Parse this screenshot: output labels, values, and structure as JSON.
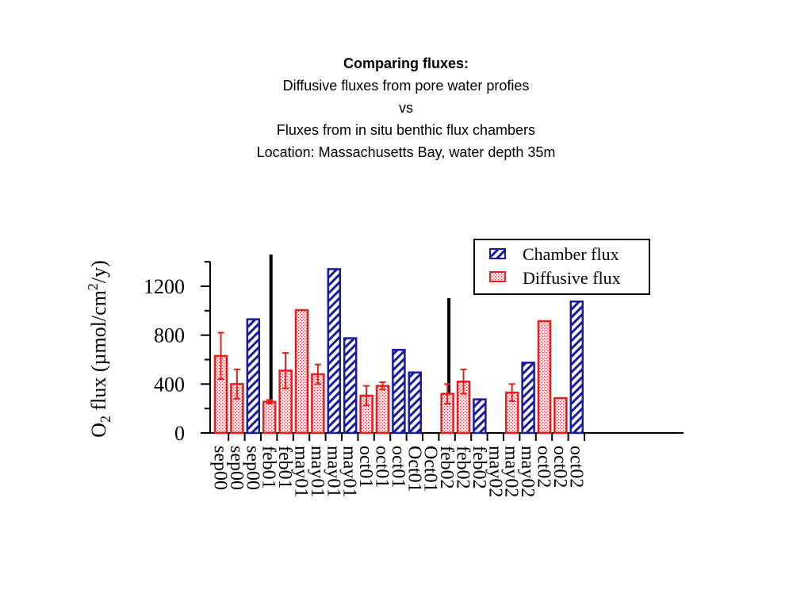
{
  "chart_data": {
    "type": "bar",
    "title": "Comparing fluxes:",
    "subtitle_lines": [
      "Diffusive fluxes from pore water profies",
      "vs",
      "Fluxes from in situ benthic flux chambers",
      "Location: Massachusetts Bay, water depth 35m"
    ],
    "ylabel": "O2 flux (µmol/cm2/y)",
    "ylabel_parts": {
      "pre": "O",
      "sub": "2",
      "mid": " flux (µmol/cm",
      "sup": "2",
      "post": "/y)"
    },
    "ylim": [
      0,
      1420
    ],
    "yticks": [
      0,
      400,
      800,
      1200
    ],
    "legend": {
      "placement": "top-right",
      "entries": [
        {
          "label": "Chamber flux",
          "series": "chamber"
        },
        {
          "label": "Diffusive flux",
          "series": "diffusive"
        }
      ]
    },
    "colors": {
      "chamber": "#1a1a9c",
      "diffusive": "#e0211f"
    },
    "categories": [
      "sep00",
      "sep00",
      "sep00",
      "feb01",
      "feb01",
      "may01",
      "may01",
      "may01",
      "may01",
      "oct01",
      "oct01",
      "oct01",
      "Oct01",
      "Oct01",
      "feb02",
      "feb02",
      "feb02",
      "may02",
      "may02",
      "may02",
      "oct02",
      "oct02",
      "oct02"
    ],
    "bars": [
      {
        "label": "sep00",
        "series": "diffusive",
        "value": 630,
        "error": 190
      },
      {
        "label": "sep00",
        "series": "diffusive",
        "value": 400,
        "error": 120
      },
      {
        "label": "sep00",
        "series": "chamber",
        "value": 930,
        "error": null
      },
      {
        "label": "feb01",
        "series": "diffusive",
        "value": 255,
        "error": 15
      },
      {
        "label": "feb01",
        "series": "diffusive",
        "value": 510,
        "error": 145
      },
      {
        "label": "may01",
        "series": "diffusive",
        "value": 1005,
        "error": null
      },
      {
        "label": "may01",
        "series": "diffusive",
        "value": 480,
        "error": 80
      },
      {
        "label": "may01",
        "series": "chamber",
        "value": 1340,
        "error": null
      },
      {
        "label": "may01",
        "series": "chamber",
        "value": 775,
        "error": null
      },
      {
        "label": "oct01",
        "series": "diffusive",
        "value": 305,
        "error": 80
      },
      {
        "label": "oct01",
        "series": "diffusive",
        "value": 385,
        "error": 30
      },
      {
        "label": "oct01",
        "series": "chamber",
        "value": 680,
        "error": null
      },
      {
        "label": "Oct01",
        "series": "chamber",
        "value": 495,
        "error": null
      },
      {
        "label": "Oct01",
        "series": "none",
        "value": null,
        "error": null
      },
      {
        "label": "feb02",
        "series": "diffusive",
        "value": 320,
        "error": 80
      },
      {
        "label": "feb02",
        "series": "diffusive",
        "value": 420,
        "error": 100
      },
      {
        "label": "feb02",
        "series": "chamber",
        "value": 275,
        "error": null
      },
      {
        "label": "may02",
        "series": "none",
        "value": null,
        "error": null
      },
      {
        "label": "may02",
        "series": "diffusive",
        "value": 330,
        "error": 70
      },
      {
        "label": "may02",
        "series": "chamber",
        "value": 575,
        "error": null
      },
      {
        "label": "oct02",
        "series": "diffusive",
        "value": 915,
        "error": null
      },
      {
        "label": "oct02",
        "series": "diffusive",
        "value": 285,
        "error": null
      },
      {
        "label": "oct02",
        "series": "chamber",
        "value": 1075,
        "error": null
      }
    ],
    "separators_after_category": [
      2,
      13
    ]
  }
}
